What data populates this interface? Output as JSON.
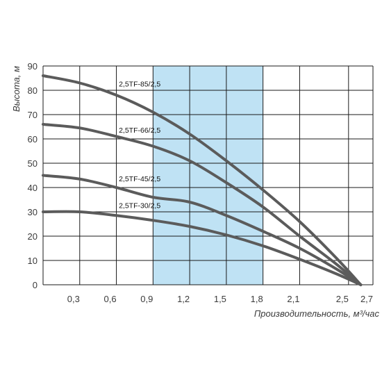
{
  "chart_data": {
    "type": "line",
    "ylabel": "Высота, м",
    "xlabel": "Производительность, м³/час",
    "x_ticks": [
      "0,3",
      "0,6",
      "0,9",
      "1,2",
      "1,5",
      "1,8",
      "2,1",
      "2,5",
      "2,7"
    ],
    "y_ticks": [
      "0",
      "10",
      "20",
      "30",
      "40",
      "50",
      "60",
      "70",
      "80",
      "90"
    ],
    "xlim": [
      0,
      2.7
    ],
    "ylim": [
      0,
      90
    ],
    "grid": true,
    "highlight_band": {
      "x_from": 0.9,
      "x_to": 1.8,
      "color": "#bfe2f4"
    },
    "colors": {
      "curve": "#5b5b5b",
      "grid": "#1a1a1a",
      "band": "#bfe2f4"
    },
    "series": [
      {
        "name": "2,5TF-85/2,5",
        "label_at": [
          0.62,
          81
        ],
        "x": [
          0,
          0.3,
          0.6,
          0.9,
          1.2,
          1.5,
          1.8,
          2.1,
          2.4,
          2.6
        ],
        "y": [
          86,
          83,
          78,
          71,
          62,
          51,
          39,
          26,
          11,
          0
        ]
      },
      {
        "name": "2,5TF-66/2,5",
        "label_at": [
          0.62,
          62
        ],
        "x": [
          0,
          0.3,
          0.6,
          0.9,
          1.2,
          1.5,
          1.8,
          2.1,
          2.4,
          2.6
        ],
        "y": [
          66,
          64.5,
          61,
          57,
          51,
          42,
          32,
          20,
          8.5,
          0
        ]
      },
      {
        "name": "2,5TF-45/2,5",
        "label_at": [
          0.62,
          42
        ],
        "x": [
          0,
          0.3,
          0.6,
          0.9,
          1.2,
          1.5,
          1.8,
          2.1,
          2.4,
          2.6
        ],
        "y": [
          45,
          43.5,
          40,
          36,
          34,
          28.5,
          22,
          15,
          6.5,
          0
        ]
      },
      {
        "name": "2,5TF-30/2,5",
        "label_at": [
          0.62,
          31
        ],
        "x": [
          0,
          0.3,
          0.6,
          0.9,
          1.2,
          1.5,
          1.8,
          2.1,
          2.4,
          2.6
        ],
        "y": [
          30,
          30,
          28.5,
          26.5,
          24,
          20.5,
          16,
          10.5,
          4.5,
          0
        ]
      }
    ]
  }
}
